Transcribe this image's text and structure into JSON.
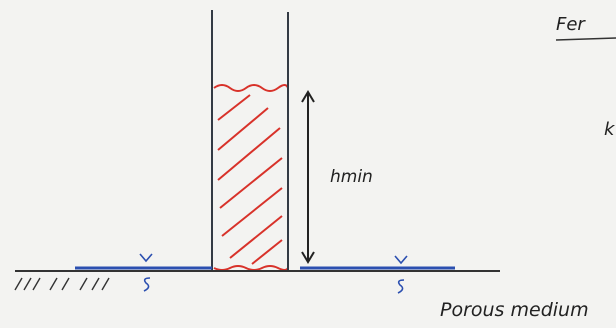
{
  "labels": {
    "header": "Fer",
    "height": "hmin",
    "medium": "Porous medium",
    "edge": "k"
  }
}
